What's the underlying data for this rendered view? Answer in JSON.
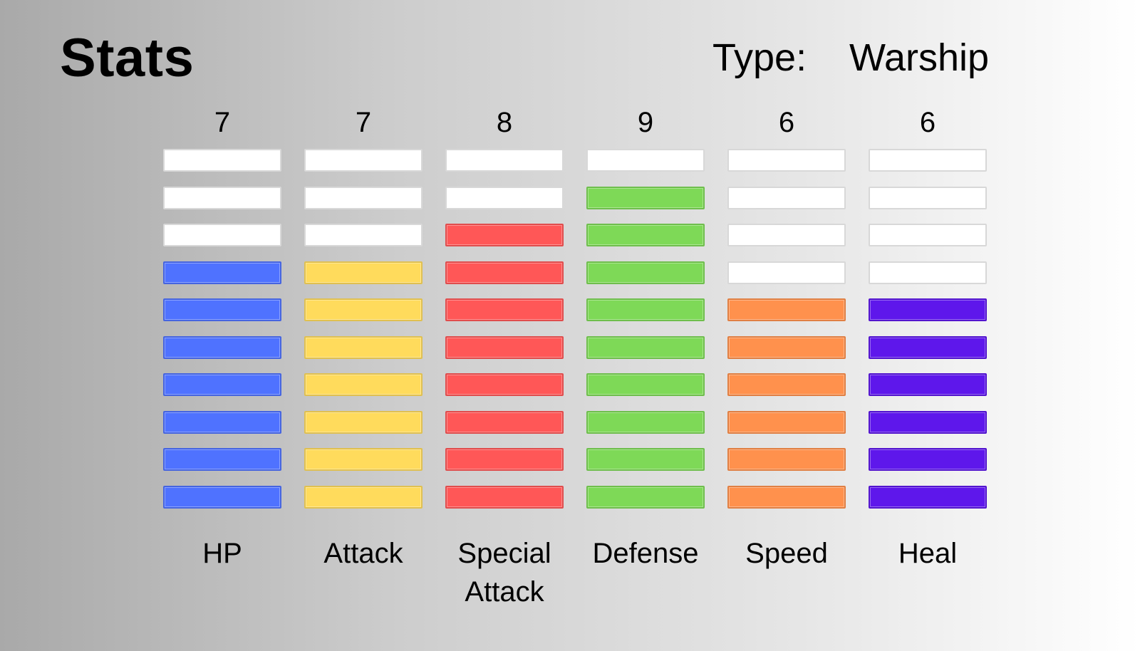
{
  "title": "Stats",
  "type": {
    "label": "Type:",
    "value": "Warship"
  },
  "chart_data": {
    "type": "bar",
    "max_segments": 10,
    "categories": [
      {
        "line1": "HP",
        "line2": ""
      },
      {
        "line1": "Attack",
        "line2": ""
      },
      {
        "line1": "Special",
        "line2": "Attack"
      },
      {
        "line1": "Defense",
        "line2": ""
      },
      {
        "line1": "Speed",
        "line2": ""
      },
      {
        "line1": "Heal",
        "line2": ""
      }
    ],
    "values": [
      7,
      7,
      8,
      9,
      6,
      6
    ],
    "colors": [
      "#4f72ff",
      "#ffdb5c",
      "#ff5757",
      "#7ed957",
      "#ff914d",
      "#5e17eb"
    ],
    "empty_color": "#ffffff"
  }
}
